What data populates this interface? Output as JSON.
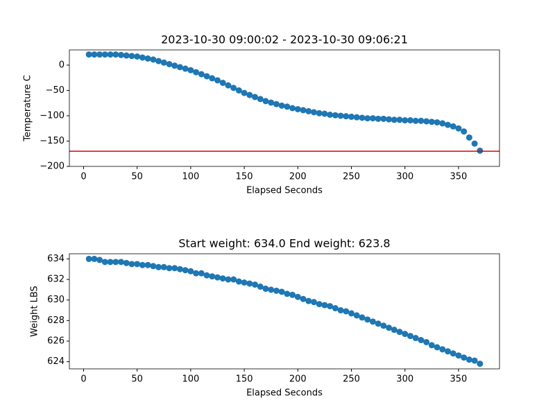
{
  "chart_data": [
    {
      "type": "scatter",
      "title": "2023-10-30 09:00:02 - 2023-10-30 09:06:21",
      "xlabel": "Elapsed Seconds",
      "ylabel": "Temperature C",
      "color": "#1f77b4",
      "x": [
        5,
        10,
        15,
        20,
        25,
        30,
        35,
        40,
        45,
        50,
        55,
        60,
        65,
        70,
        75,
        80,
        85,
        90,
        95,
        100,
        105,
        110,
        115,
        120,
        125,
        130,
        135,
        140,
        145,
        150,
        155,
        160,
        165,
        170,
        175,
        180,
        185,
        190,
        195,
        200,
        205,
        210,
        215,
        220,
        225,
        230,
        235,
        240,
        245,
        250,
        255,
        260,
        265,
        270,
        275,
        280,
        285,
        290,
        295,
        300,
        305,
        310,
        315,
        320,
        325,
        330,
        335,
        340,
        345,
        350,
        355,
        360,
        365,
        370
      ],
      "values": [
        21,
        21,
        21,
        21,
        21,
        21,
        20,
        19,
        18,
        17,
        15,
        13,
        11,
        8,
        5,
        2,
        -1,
        -4,
        -7,
        -10,
        -14,
        -18,
        -22,
        -26,
        -30,
        -35,
        -40,
        -45,
        -50,
        -55,
        -59,
        -63,
        -67,
        -71,
        -74,
        -77,
        -80,
        -82,
        -85,
        -87,
        -89,
        -91,
        -93,
        -95,
        -96,
        -98,
        -99,
        -100,
        -101,
        -102,
        -103,
        -104,
        -105,
        -105,
        -106,
        -106,
        -107,
        -108,
        -108,
        -109,
        -109,
        -110,
        -110,
        -111,
        -112,
        -113,
        -115,
        -118,
        -121,
        -125,
        -131,
        -143,
        -155,
        -169
      ],
      "reference_line": {
        "value": -170,
        "color": "#e00000"
      },
      "xlim": [
        -13.25,
        388.25
      ],
      "ylim": [
        -200,
        30
      ],
      "xticks": [
        0,
        50,
        100,
        150,
        200,
        250,
        300,
        350
      ],
      "yticks": [
        {
          "value": -200,
          "label": "−200"
        },
        {
          "value": -150,
          "label": "−150"
        },
        {
          "value": -100,
          "label": "−100"
        },
        {
          "value": -50,
          "label": "−50"
        },
        0
      ]
    },
    {
      "type": "scatter",
      "title": "Start weight: 634.0 End weight: 623.8",
      "xlabel": "Elapsed Seconds",
      "ylabel": "Weight LBS",
      "color": "#1f77b4",
      "x": [
        5,
        10,
        15,
        20,
        25,
        30,
        35,
        40,
        45,
        50,
        55,
        60,
        65,
        70,
        75,
        80,
        85,
        90,
        95,
        100,
        105,
        110,
        115,
        120,
        125,
        130,
        135,
        140,
        145,
        150,
        155,
        160,
        165,
        170,
        175,
        180,
        185,
        190,
        195,
        200,
        205,
        210,
        215,
        220,
        225,
        230,
        235,
        240,
        245,
        250,
        255,
        260,
        265,
        270,
        275,
        280,
        285,
        290,
        295,
        300,
        305,
        310,
        315,
        320,
        325,
        330,
        335,
        340,
        345,
        350,
        355,
        360,
        365,
        370
      ],
      "values": [
        634.0,
        634.0,
        633.9,
        633.7,
        633.7,
        633.7,
        633.7,
        633.6,
        633.5,
        633.5,
        633.4,
        633.4,
        633.3,
        633.2,
        633.2,
        633.1,
        633.1,
        633.0,
        632.9,
        632.8,
        632.6,
        632.6,
        632.4,
        632.3,
        632.2,
        632.1,
        632.0,
        632.0,
        631.8,
        631.7,
        631.6,
        631.5,
        631.3,
        631.1,
        631.0,
        630.9,
        630.8,
        630.6,
        630.5,
        630.3,
        630.1,
        629.9,
        629.8,
        629.6,
        629.5,
        629.4,
        629.2,
        629.0,
        628.9,
        628.7,
        628.5,
        628.3,
        628.1,
        627.9,
        627.7,
        627.5,
        627.3,
        627.1,
        626.9,
        626.7,
        626.5,
        626.3,
        626.1,
        625.9,
        625.6,
        625.4,
        625.2,
        625.0,
        624.8,
        624.6,
        624.4,
        624.2,
        624.1,
        623.8
      ],
      "xlim": [
        -13.25,
        388.25
      ],
      "ylim": [
        623.3,
        634.5
      ],
      "xticks": [
        0,
        50,
        100,
        150,
        200,
        250,
        300,
        350
      ],
      "yticks": [
        624,
        626,
        628,
        630,
        632,
        634
      ]
    }
  ]
}
